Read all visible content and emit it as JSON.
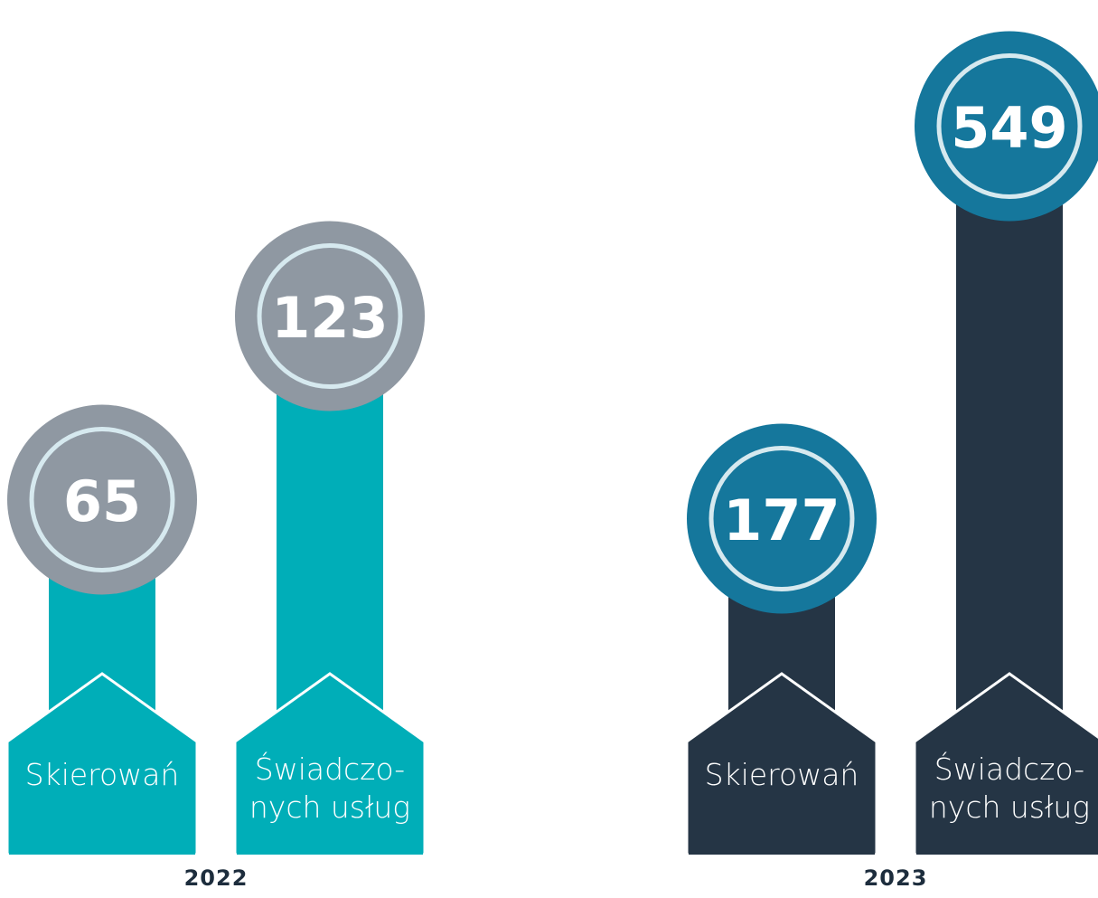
{
  "chart_data": [
    {
      "type": "bar",
      "title": "2022",
      "categories": [
        "Skierowań",
        "Świadczo-\nnych usług"
      ],
      "values": [
        65,
        123
      ],
      "color": "#00aeb8",
      "marker_color": "#8f98a2",
      "ylim": [
        0,
        200
      ]
    },
    {
      "type": "bar",
      "title": "2023",
      "categories": [
        "Skierowań",
        "Świadczo-\nnych usług"
      ],
      "values": [
        177,
        549
      ],
      "color": "#253545",
      "marker_color": "#15779c",
      "ylim": [
        0,
        600
      ]
    }
  ]
}
